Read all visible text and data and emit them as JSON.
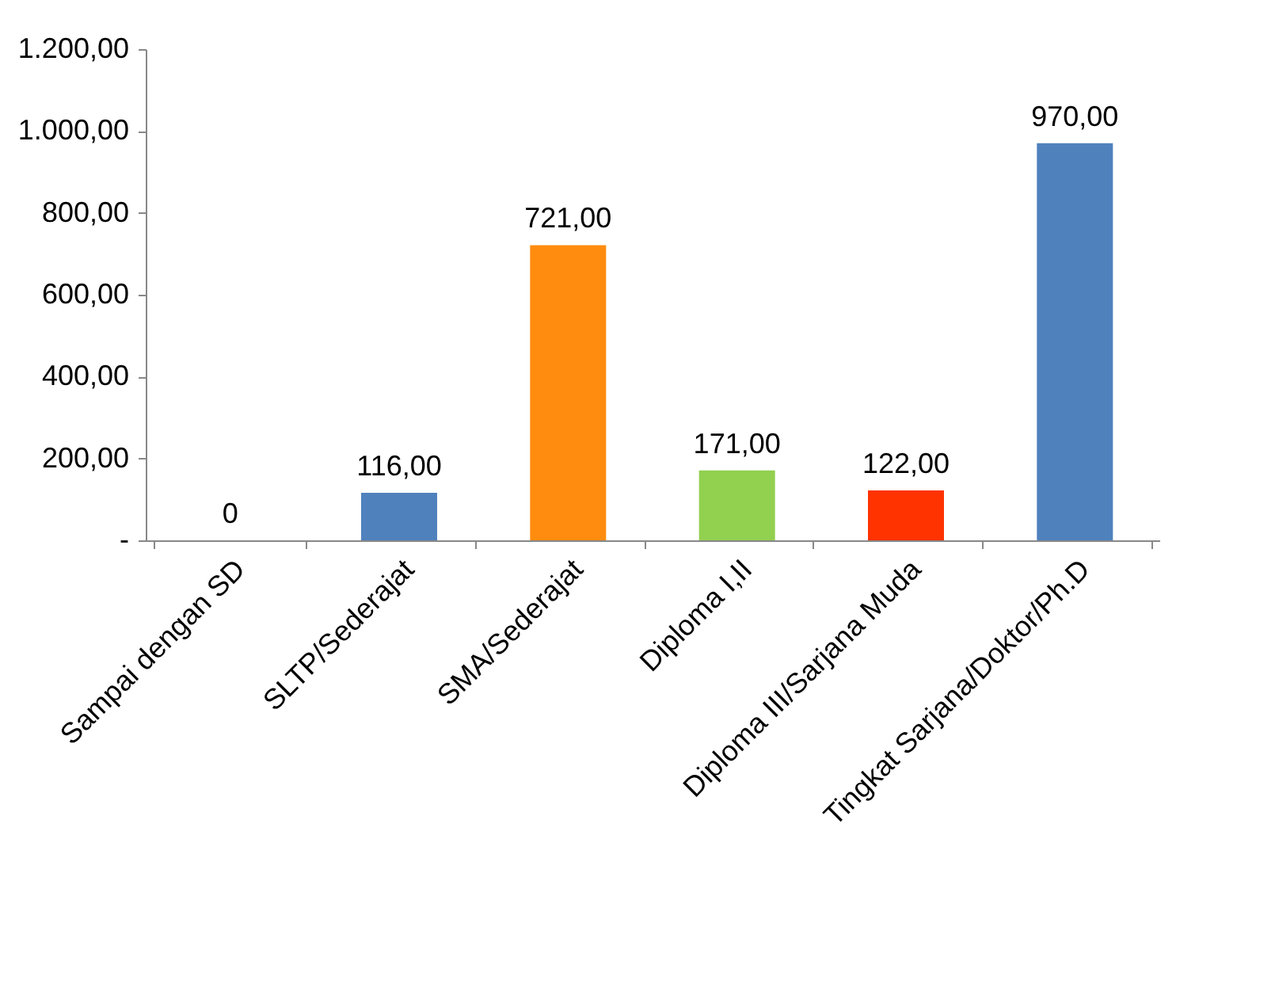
{
  "chart_data": {
    "type": "bar",
    "categories": [
      "Sampai dengan SD",
      "SLTP/Sederajat",
      "SMA/Sederajat",
      "Diploma I,II",
      "Diploma III/Sarjana Muda",
      "Tingkat Sarjana/Doktor/Ph.D"
    ],
    "values": [
      0,
      116,
      721,
      171,
      122,
      970
    ],
    "colors": [
      "#4f81bd",
      "#4f81bd",
      "#ff8c0f",
      "#92d050",
      "#ff3300",
      "#4f81bd"
    ],
    "value_labels": [
      "0",
      "116,00",
      "721,00",
      "171,00",
      "122,00",
      "970,00"
    ],
    "ylim": [
      0,
      1200
    ],
    "yticks": [
      {
        "value": 0,
        "label": "-"
      },
      {
        "value": 200,
        "label": "200,00"
      },
      {
        "value": 400,
        "label": "400,00"
      },
      {
        "value": 600,
        "label": "600,00"
      },
      {
        "value": 800,
        "label": "800,00"
      },
      {
        "value": 1000,
        "label": "1.000,00"
      },
      {
        "value": 1200,
        "label": "1.200,00"
      }
    ],
    "grid": false,
    "legend": false
  }
}
